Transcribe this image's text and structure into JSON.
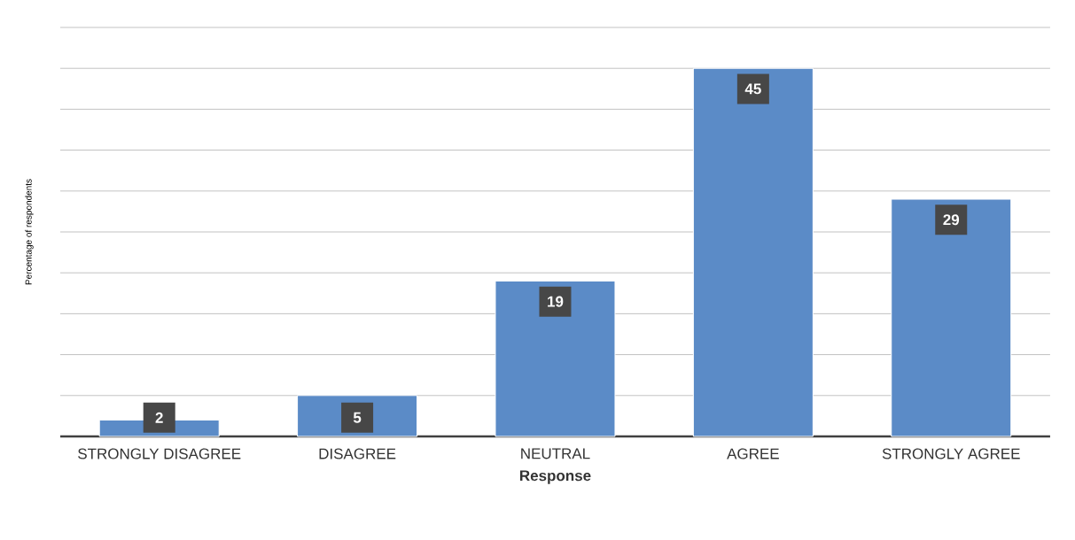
{
  "chart_data": {
    "type": "bar",
    "xlabel": "Response",
    "ylabel": "Percentage of respondents",
    "categories": [
      "STRONGLY DISAGREE",
      "DISAGREE",
      "NEUTRAL",
      "AGREE",
      "STRONGLY AGREE"
    ],
    "values": [
      2,
      5,
      19,
      45,
      29
    ],
    "color": "#5b8bc7",
    "ylim": [
      0,
      50
    ],
    "yticks": [
      {
        "value": 0,
        "label": null
      },
      {
        "value": 5,
        "label": null
      },
      {
        "value": 10,
        "label": null
      },
      {
        "value": 15,
        "label": null
      },
      {
        "value": 20,
        "label": null
      },
      {
        "value": 25,
        "label": null
      },
      {
        "value": 30,
        "label": null
      },
      {
        "value": 35,
        "label": null
      },
      {
        "value": 40,
        "label": null
      },
      {
        "value": 45,
        "label": null
      },
      {
        "value": 50,
        "label": null
      }
    ],
    "tick_labels": "x",
    "grid": "y",
    "data_labels": true
  }
}
